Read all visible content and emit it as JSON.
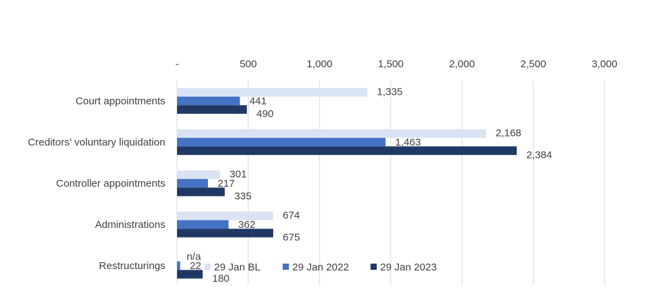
{
  "chart_data": {
    "type": "bar",
    "orientation": "horizontal",
    "categories": [
      "Court appointments",
      "Creditors' voluntary liquidation",
      "Controller appointments",
      "Administrations",
      "Restructurings"
    ],
    "series": [
      {
        "name": "29 Jan BL",
        "values": [
          1335,
          2168,
          301,
          674,
          null
        ],
        "labels": [
          "1,335",
          "2,168",
          "301",
          "674",
          "n/a"
        ],
        "color": "#dae3f3"
      },
      {
        "name": "29 Jan 2022",
        "values": [
          441,
          1463,
          217,
          362,
          22
        ],
        "labels": [
          "441",
          "1,463",
          "217",
          "362",
          "22"
        ],
        "color": "#4472c4"
      },
      {
        "name": "29 Jan 2023",
        "values": [
          490,
          2384,
          335,
          675,
          180
        ],
        "labels": [
          "490",
          "2,384",
          "335",
          "675",
          "180"
        ],
        "color": "#203864"
      }
    ],
    "x_ticks": [
      "-",
      "500",
      "1,000",
      "1,500",
      "2,000",
      "2,500",
      "3,000"
    ],
    "xlim": [
      0,
      3000
    ],
    "x_axis_position": "top",
    "grid": true,
    "legend_position": "bottom-right"
  }
}
